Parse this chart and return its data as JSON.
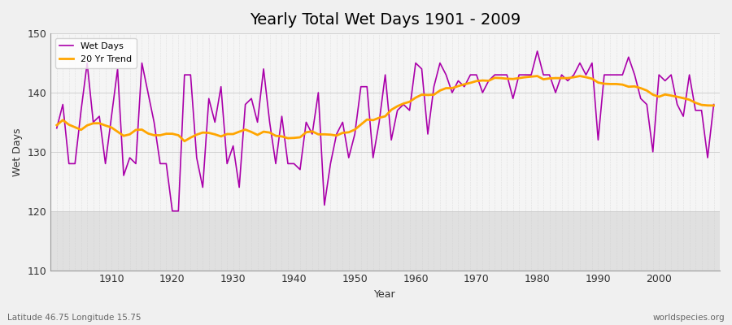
{
  "title": "Yearly Total Wet Days 1901 - 2009",
  "xlabel": "Year",
  "ylabel": "Wet Days",
  "footnote_left": "Latitude 46.75 Longitude 15.75",
  "footnote_right": "worldspecies.org",
  "line_color": "#AA00AA",
  "trend_color": "#FFA500",
  "bg_color": "#F0F0F0",
  "plot_bg_color": "#F5F5F5",
  "plot_bg_lower": "#E0E0E0",
  "ylim": [
    110,
    150
  ],
  "yticks": [
    110,
    120,
    130,
    140,
    150
  ],
  "xticks": [
    1910,
    1920,
    1930,
    1940,
    1950,
    1960,
    1970,
    1980,
    1990,
    2000
  ],
  "years": [
    1901,
    1902,
    1903,
    1904,
    1905,
    1906,
    1907,
    1908,
    1909,
    1910,
    1911,
    1912,
    1913,
    1914,
    1915,
    1916,
    1917,
    1918,
    1919,
    1920,
    1921,
    1922,
    1923,
    1924,
    1925,
    1926,
    1927,
    1928,
    1929,
    1930,
    1931,
    1932,
    1933,
    1934,
    1935,
    1936,
    1937,
    1938,
    1939,
    1940,
    1941,
    1942,
    1943,
    1944,
    1945,
    1946,
    1947,
    1948,
    1949,
    1950,
    1951,
    1952,
    1953,
    1954,
    1955,
    1956,
    1957,
    1958,
    1959,
    1960,
    1961,
    1962,
    1963,
    1964,
    1965,
    1966,
    1967,
    1968,
    1969,
    1970,
    1971,
    1972,
    1973,
    1974,
    1975,
    1976,
    1977,
    1978,
    1979,
    1980,
    1981,
    1982,
    1983,
    1984,
    1985,
    1986,
    1987,
    1988,
    1989,
    1990,
    1991,
    1992,
    1993,
    1994,
    1995,
    1996,
    1997,
    1998,
    1999,
    2000,
    2001,
    2002,
    2003,
    2004,
    2005,
    2006,
    2007,
    2008,
    2009
  ],
  "wet_days": [
    134,
    138,
    128,
    128,
    137,
    145,
    135,
    136,
    128,
    136,
    144,
    126,
    129,
    128,
    145,
    140,
    135,
    128,
    128,
    120,
    120,
    143,
    143,
    129,
    124,
    139,
    135,
    141,
    128,
    131,
    124,
    138,
    139,
    135,
    144,
    135,
    128,
    136,
    128,
    128,
    127,
    135,
    133,
    140,
    121,
    128,
    133,
    135,
    129,
    133,
    141,
    141,
    129,
    135,
    143,
    132,
    137,
    138,
    137,
    145,
    144,
    133,
    141,
    145,
    143,
    140,
    142,
    141,
    143,
    143,
    140,
    142,
    143,
    143,
    143,
    139,
    143,
    143,
    143,
    147,
    143,
    143,
    140,
    143,
    142,
    143,
    145,
    143,
    145,
    132,
    143,
    143,
    143,
    143,
    146,
    143,
    139,
    138,
    130,
    143,
    142,
    143,
    138,
    136,
    143,
    137,
    137,
    129,
    138
  ],
  "window": 20
}
